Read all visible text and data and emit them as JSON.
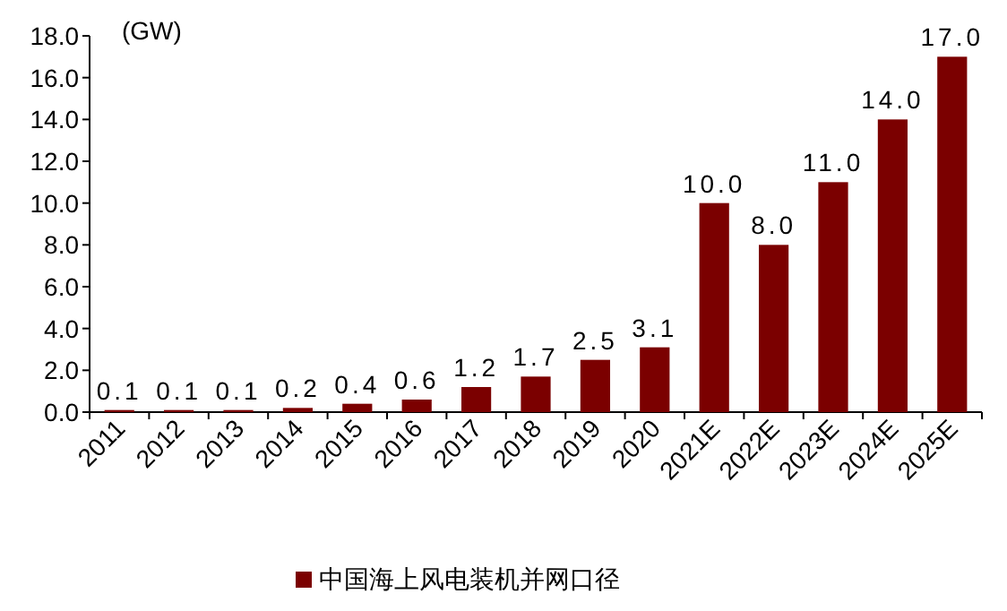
{
  "chart_data": {
    "type": "bar",
    "ylabel": "(GW)",
    "categories": [
      "2011",
      "2012",
      "2013",
      "2014",
      "2015",
      "2016",
      "2017",
      "2018",
      "2019",
      "2020",
      "2021E",
      "2022E",
      "2023E",
      "2024E",
      "2025E"
    ],
    "series": [
      {
        "name": "中国海上风电装机并网口径",
        "color": "#7b0000",
        "values": [
          0.1,
          0.1,
          0.1,
          0.2,
          0.4,
          0.6,
          1.2,
          1.7,
          2.5,
          3.1,
          10,
          8,
          11,
          14,
          17
        ],
        "value_labels": [
          "0.1",
          "0.1",
          "0.1",
          "0.2",
          "0.4",
          "0.6",
          "1.2",
          "1.7",
          "2.5",
          "3.1",
          "10.0",
          "8.0",
          "11.0",
          "14.0",
          "17.0"
        ]
      }
    ],
    "ylim": [
      0,
      18
    ],
    "yticks": [
      {
        "value": 0,
        "label": "0.0"
      },
      {
        "value": 2,
        "label": "2.0"
      },
      {
        "value": 4,
        "label": "4.0"
      },
      {
        "value": 6,
        "label": "6.0"
      },
      {
        "value": 8,
        "label": "8.0"
      },
      {
        "value": 10,
        "label": "10.0"
      },
      {
        "value": 12,
        "label": "12.0"
      },
      {
        "value": 14,
        "label": "14.0"
      },
      {
        "value": 16,
        "label": "16.0"
      },
      {
        "value": 18,
        "label": "18.0"
      }
    ],
    "legend": "bottom"
  }
}
